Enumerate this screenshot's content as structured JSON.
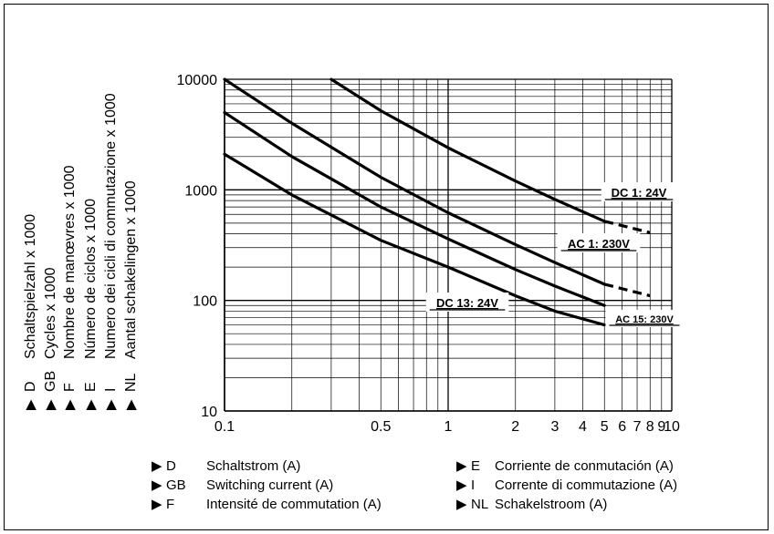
{
  "chart_data": {
    "type": "line",
    "x_scale": "log",
    "y_scale": "log",
    "xlim": [
      0.1,
      10
    ],
    "ylim": [
      10,
      10000
    ],
    "grid": true,
    "x_ticks": [
      {
        "v": 0.1,
        "label": "0.1"
      },
      {
        "v": 0.5,
        "label": "0.5"
      },
      {
        "v": 1,
        "label": "1"
      },
      {
        "v": 2,
        "label": "2"
      },
      {
        "v": 3,
        "label": "3"
      },
      {
        "v": 4,
        "label": "4"
      },
      {
        "v": 5,
        "label": "5"
      },
      {
        "v": 6,
        "label": "6"
      },
      {
        "v": 7,
        "label": "7"
      },
      {
        "v": 8,
        "label": "8"
      },
      {
        "v": 9,
        "label": "9"
      },
      {
        "v": 10,
        "label": "10"
      }
    ],
    "y_ticks": [
      {
        "v": 10,
        "label": "10"
      },
      {
        "v": 100,
        "label": "100"
      },
      {
        "v": 1000,
        "label": "1000"
      },
      {
        "v": 10000,
        "label": "10000"
      }
    ],
    "series": [
      {
        "name": "DC 1: 24V",
        "x": [
          0.3,
          0.5,
          1,
          2,
          3,
          5
        ],
        "y": [
          10000,
          5200,
          2400,
          1200,
          820,
          520
        ],
        "dashed_x": [
          5,
          8
        ],
        "dashed_y": [
          520,
          410
        ]
      },
      {
        "name": "AC 1: 230V",
        "x": [
          0.1,
          0.2,
          0.5,
          1,
          2,
          3,
          5
        ],
        "y": [
          10000,
          4000,
          1300,
          620,
          320,
          220,
          140
        ],
        "dashed_x": [
          5,
          8
        ],
        "dashed_y": [
          140,
          110
        ]
      },
      {
        "name": "",
        "x": [
          0.1,
          0.2,
          0.5,
          1,
          2,
          3,
          5
        ],
        "y": [
          5000,
          2000,
          700,
          360,
          190,
          135,
          90
        ]
      },
      {
        "name": "",
        "x": [
          0.1,
          0.2,
          0.5,
          1,
          2,
          3,
          5
        ],
        "y": [
          2100,
          900,
          350,
          200,
          110,
          80,
          60
        ]
      }
    ],
    "annotations": [
      {
        "text": "DC 1: 24V",
        "series": 0
      },
      {
        "text": "AC 1: 230V",
        "series": 1
      },
      {
        "text": "DC 13: 24V",
        "series": 2
      },
      {
        "text": "AC 15: 230V",
        "series": 3
      }
    ],
    "y_axis_legend": [
      {
        "code": "D",
        "text": "Schaltspielzahl x 1000"
      },
      {
        "code": "GB",
        "text": "Cycles x 1000"
      },
      {
        "code": "F",
        "text": "Nombre de manœvres x 1000"
      },
      {
        "code": "E",
        "text": "Número de ciclos x 1000"
      },
      {
        "code": "I",
        "text": "Numero dei cicli di commutazione x 1000"
      },
      {
        "code": "NL",
        "text": "Aantal schakelingen x 1000"
      }
    ],
    "x_axis_legend_left": [
      {
        "code": "D",
        "text": "Schaltstrom (A)"
      },
      {
        "code": "GB",
        "text": "Switching current (A)"
      },
      {
        "code": "F",
        "text": "Intensité de commutation (A)"
      }
    ],
    "x_axis_legend_right": [
      {
        "code": "E",
        "text": "Corriente de conmutación (A)"
      },
      {
        "code": "I",
        "text": "Corrente di commutazione (A)"
      },
      {
        "code": "NL",
        "text": "Schakelstroom (A)"
      }
    ]
  }
}
